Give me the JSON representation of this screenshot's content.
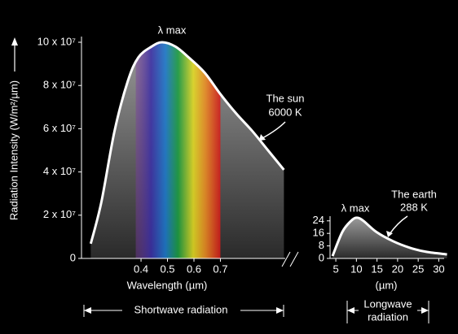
{
  "chart_data": [
    {
      "type": "line",
      "x_label": "Wavelength (µm)",
      "y_label": "Radiation Intensity (W/m²/µm)",
      "x": [
        0.21,
        0.25,
        0.3,
        0.35,
        0.39,
        0.44,
        0.48,
        0.53,
        0.58,
        0.64,
        0.7,
        0.76,
        0.82,
        0.88,
        0.94
      ],
      "series": [
        {
          "name": "The sun",
          "color": "#ffffff",
          "values": [
            6800000,
            26000000,
            59000000,
            82000000,
            93000000,
            98000000,
            100000000,
            98000000,
            93000000,
            86000000,
            76000000,
            67000000,
            59000000,
            50000000,
            41000000
          ]
        }
      ],
      "xlim": [
        0.175,
        0.945
      ],
      "ylim": [
        0,
        100000000
      ],
      "xticks": [
        0.4,
        0.5,
        0.6,
        0.7
      ],
      "yticks": [
        0,
        {
          "value": 20000000,
          "label": "2 x 10⁷"
        },
        {
          "value": 40000000,
          "label": "4 x 10⁷"
        },
        {
          "value": 60000000,
          "label": "6 x 10⁷"
        },
        {
          "value": 80000000,
          "label": "8 x 10⁷"
        },
        {
          "value": 100000000,
          "label": "10 x 10⁷"
        }
      ],
      "annotations": [
        "λ max",
        "The sun",
        "6000 K"
      ],
      "span_label": [
        "Shortwave radiation"
      ]
    },
    {
      "type": "line",
      "x_label": "(µm)",
      "x": [
        4.2,
        6.6,
        8.7,
        10.1,
        11.7,
        14.8,
        18.9,
        23,
        27,
        32
      ],
      "series": [
        {
          "name": "The earth",
          "color": "#ffffff",
          "values": [
            1.5,
            17,
            24,
            26,
            24,
            17,
            11,
            6.8,
            4.2,
            2.6
          ]
        }
      ],
      "xlim": [
        3.6,
        31.3
      ],
      "ylim": [
        0,
        27
      ],
      "xticks": [
        5,
        10,
        15,
        20,
        25,
        30
      ],
      "yticks": [
        0,
        8,
        16,
        24
      ],
      "annotations": [
        "λ max",
        "The earth",
        "288 K"
      ],
      "span_label": [
        "Longwave",
        "radiation"
      ]
    }
  ]
}
